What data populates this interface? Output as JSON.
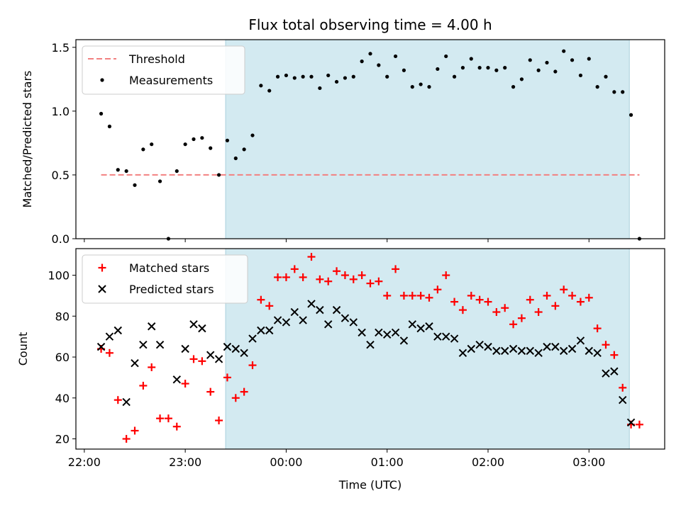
{
  "chart_data": [
    {
      "type": "scatter",
      "title": "Flux total observing time = 4.00 h",
      "ylabel": "Matched/Predicted stars",
      "xlim": [
        "21:55",
        "03:45"
      ],
      "ylim": [
        0,
        1.56
      ],
      "yticks": [
        "0.0",
        "0.5",
        "1.0",
        "1.5"
      ],
      "grid": false,
      "legend_position": "top-left",
      "shaded_region": {
        "start": "23:24",
        "end": "03:24",
        "color": "#d3eaf1"
      },
      "threshold": {
        "name": "Threshold",
        "value": 0.5,
        "start": "22:10",
        "end": "03:30",
        "color": "#f28080"
      },
      "series": [
        {
          "name": "Measurements",
          "color": "#000000",
          "marker": "dot",
          "points": [
            [
              "22:10",
              0.98
            ],
            [
              "22:15",
              0.88
            ],
            [
              "22:20",
              0.54
            ],
            [
              "22:25",
              0.53
            ],
            [
              "22:30",
              0.42
            ],
            [
              "22:35",
              0.7
            ],
            [
              "22:40",
              0.74
            ],
            [
              "22:45",
              0.45
            ],
            [
              "22:50",
              0.0
            ],
            [
              "22:55",
              0.53
            ],
            [
              "23:00",
              0.74
            ],
            [
              "23:05",
              0.78
            ],
            [
              "23:10",
              0.79
            ],
            [
              "23:15",
              0.71
            ],
            [
              "23:20",
              0.5
            ],
            [
              "23:25",
              0.77
            ],
            [
              "23:30",
              0.63
            ],
            [
              "23:35",
              0.7
            ],
            [
              "23:40",
              0.81
            ],
            [
              "23:45",
              1.2
            ],
            [
              "23:50",
              1.16
            ],
            [
              "23:55",
              1.27
            ],
            [
              "00:00",
              1.28
            ],
            [
              "00:05",
              1.26
            ],
            [
              "00:10",
              1.27
            ],
            [
              "00:15",
              1.27
            ],
            [
              "00:20",
              1.18
            ],
            [
              "00:25",
              1.28
            ],
            [
              "00:30",
              1.23
            ],
            [
              "00:35",
              1.26
            ],
            [
              "00:40",
              1.27
            ],
            [
              "00:45",
              1.39
            ],
            [
              "00:50",
              1.45
            ],
            [
              "00:55",
              1.36
            ],
            [
              "01:00",
              1.27
            ],
            [
              "01:05",
              1.43
            ],
            [
              "01:10",
              1.32
            ],
            [
              "01:15",
              1.19
            ],
            [
              "01:20",
              1.21
            ],
            [
              "01:25",
              1.19
            ],
            [
              "01:30",
              1.33
            ],
            [
              "01:35",
              1.43
            ],
            [
              "01:40",
              1.27
            ],
            [
              "01:45",
              1.34
            ],
            [
              "01:50",
              1.41
            ],
            [
              "01:55",
              1.34
            ],
            [
              "02:00",
              1.34
            ],
            [
              "02:05",
              1.32
            ],
            [
              "02:10",
              1.34
            ],
            [
              "02:15",
              1.19
            ],
            [
              "02:20",
              1.25
            ],
            [
              "02:25",
              1.4
            ],
            [
              "02:30",
              1.32
            ],
            [
              "02:35",
              1.38
            ],
            [
              "02:40",
              1.31
            ],
            [
              "02:45",
              1.47
            ],
            [
              "02:50",
              1.4
            ],
            [
              "02:55",
              1.28
            ],
            [
              "03:00",
              1.41
            ],
            [
              "03:05",
              1.19
            ],
            [
              "03:10",
              1.27
            ],
            [
              "03:15",
              1.15
            ],
            [
              "03:20",
              1.15
            ],
            [
              "03:25",
              0.97
            ],
            [
              "03:30",
              0.0
            ]
          ]
        }
      ]
    },
    {
      "type": "scatter",
      "xlabel": "Time (UTC)",
      "ylabel": "Count",
      "xlim": [
        "21:55",
        "03:45"
      ],
      "ylim": [
        15,
        113
      ],
      "yticks": [
        "20",
        "40",
        "60",
        "80",
        "100"
      ],
      "xticks": [
        "22:00",
        "23:00",
        "00:00",
        "01:00",
        "02:00",
        "03:00"
      ],
      "grid": false,
      "legend_position": "top-left",
      "shaded_region": {
        "start": "23:24",
        "end": "03:24",
        "color": "#d3eaf1"
      },
      "series": [
        {
          "name": "Matched stars",
          "color": "#ff0000",
          "marker": "plus",
          "points": [
            [
              "22:10",
              64
            ],
            [
              "22:15",
              62
            ],
            [
              "22:20",
              39
            ],
            [
              "22:25",
              20
            ],
            [
              "22:30",
              24
            ],
            [
              "22:35",
              46
            ],
            [
              "22:40",
              55
            ],
            [
              "22:45",
              30
            ],
            [
              "22:50",
              30
            ],
            [
              "22:55",
              26
            ],
            [
              "23:00",
              47
            ],
            [
              "23:05",
              59
            ],
            [
              "23:10",
              58
            ],
            [
              "23:15",
              43
            ],
            [
              "23:20",
              29
            ],
            [
              "23:25",
              50
            ],
            [
              "23:30",
              40
            ],
            [
              "23:35",
              43
            ],
            [
              "23:40",
              56
            ],
            [
              "23:45",
              88
            ],
            [
              "23:50",
              85
            ],
            [
              "23:55",
              99
            ],
            [
              "00:00",
              99
            ],
            [
              "00:05",
              103
            ],
            [
              "00:10",
              99
            ],
            [
              "00:15",
              109
            ],
            [
              "00:20",
              98
            ],
            [
              "00:25",
              97
            ],
            [
              "00:30",
              102
            ],
            [
              "00:35",
              100
            ],
            [
              "00:40",
              98
            ],
            [
              "00:45",
              100
            ],
            [
              "00:50",
              96
            ],
            [
              "00:55",
              97
            ],
            [
              "01:00",
              90
            ],
            [
              "01:05",
              103
            ],
            [
              "01:10",
              90
            ],
            [
              "01:15",
              90
            ],
            [
              "01:20",
              90
            ],
            [
              "01:25",
              89
            ],
            [
              "01:30",
              93
            ],
            [
              "01:35",
              100
            ],
            [
              "01:40",
              87
            ],
            [
              "01:45",
              83
            ],
            [
              "01:50",
              90
            ],
            [
              "01:55",
              88
            ],
            [
              "02:00",
              87
            ],
            [
              "02:05",
              82
            ],
            [
              "02:10",
              84
            ],
            [
              "02:15",
              76
            ],
            [
              "02:20",
              79
            ],
            [
              "02:25",
              88
            ],
            [
              "02:30",
              82
            ],
            [
              "02:35",
              90
            ],
            [
              "02:40",
              85
            ],
            [
              "02:45",
              93
            ],
            [
              "02:50",
              90
            ],
            [
              "02:55",
              87
            ],
            [
              "03:00",
              89
            ],
            [
              "03:05",
              74
            ],
            [
              "03:10",
              66
            ],
            [
              "03:15",
              61
            ],
            [
              "03:20",
              45
            ],
            [
              "03:25",
              27
            ],
            [
              "03:30",
              27
            ]
          ]
        },
        {
          "name": "Predicted stars",
          "color": "#000000",
          "marker": "x",
          "points": [
            [
              "22:10",
              65
            ],
            [
              "22:15",
              70
            ],
            [
              "22:20",
              73
            ],
            [
              "22:25",
              38
            ],
            [
              "22:30",
              57
            ],
            [
              "22:35",
              66
            ],
            [
              "22:40",
              75
            ],
            [
              "22:45",
              66
            ],
            [
              "22:55",
              49
            ],
            [
              "23:00",
              64
            ],
            [
              "23:05",
              76
            ],
            [
              "23:10",
              74
            ],
            [
              "23:15",
              61
            ],
            [
              "23:20",
              59
            ],
            [
              "23:25",
              65
            ],
            [
              "23:30",
              64
            ],
            [
              "23:35",
              62
            ],
            [
              "23:40",
              69
            ],
            [
              "23:45",
              73
            ],
            [
              "23:50",
              73
            ],
            [
              "23:55",
              78
            ],
            [
              "00:00",
              77
            ],
            [
              "00:05",
              82
            ],
            [
              "00:10",
              78
            ],
            [
              "00:15",
              86
            ],
            [
              "00:20",
              83
            ],
            [
              "00:25",
              76
            ],
            [
              "00:30",
              83
            ],
            [
              "00:35",
              79
            ],
            [
              "00:40",
              77
            ],
            [
              "00:45",
              72
            ],
            [
              "00:50",
              66
            ],
            [
              "00:55",
              72
            ],
            [
              "01:00",
              71
            ],
            [
              "01:05",
              72
            ],
            [
              "01:10",
              68
            ],
            [
              "01:15",
              76
            ],
            [
              "01:20",
              74
            ],
            [
              "01:25",
              75
            ],
            [
              "01:30",
              70
            ],
            [
              "01:35",
              70
            ],
            [
              "01:40",
              69
            ],
            [
              "01:45",
              62
            ],
            [
              "01:50",
              64
            ],
            [
              "01:55",
              66
            ],
            [
              "02:00",
              65
            ],
            [
              "02:05",
              63
            ],
            [
              "02:10",
              63
            ],
            [
              "02:15",
              64
            ],
            [
              "02:20",
              63
            ],
            [
              "02:25",
              63
            ],
            [
              "02:30",
              62
            ],
            [
              "02:35",
              65
            ],
            [
              "02:40",
              65
            ],
            [
              "02:45",
              63
            ],
            [
              "02:50",
              64
            ],
            [
              "02:55",
              68
            ],
            [
              "03:00",
              63
            ],
            [
              "03:05",
              62
            ],
            [
              "03:10",
              52
            ],
            [
              "03:15",
              53
            ],
            [
              "03:20",
              39
            ],
            [
              "03:25",
              28
            ]
          ]
        }
      ]
    }
  ]
}
